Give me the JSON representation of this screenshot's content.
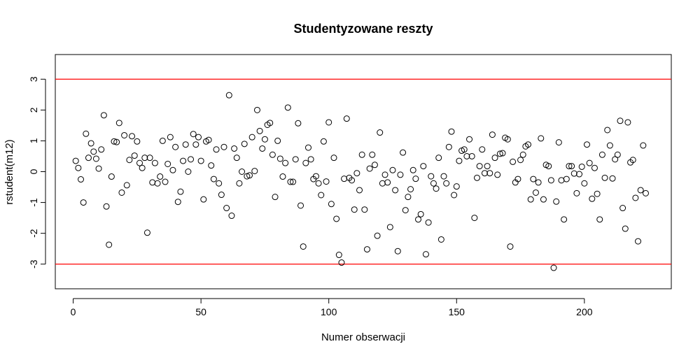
{
  "chart_data": {
    "type": "scatter",
    "title": "Studentyzowane reszty",
    "xlabel": "Numer obserwacji",
    "ylabel": "rstudent(m12)",
    "xlim": [
      -7,
      234
    ],
    "ylim": [
      -3.8,
      3.8
    ],
    "x_ticks": [
      0,
      50,
      100,
      150,
      200
    ],
    "y_ticks": [
      -3,
      -2,
      -1,
      0,
      1,
      2,
      3
    ],
    "grid": false,
    "reference_lines": [
      {
        "y": 3,
        "color": "#ff0000"
      },
      {
        "y": -3,
        "color": "#ff0000"
      }
    ],
    "point_color": "#000000",
    "x": [
      1,
      2,
      3,
      4,
      5,
      6,
      7,
      8,
      9,
      10,
      11,
      12,
      13,
      14,
      15,
      16,
      17,
      18,
      19,
      20,
      21,
      22,
      23,
      24,
      25,
      26,
      27,
      28,
      29,
      30,
      31,
      32,
      33,
      34,
      35,
      36,
      37,
      38,
      39,
      40,
      41,
      42,
      43,
      44,
      45,
      46,
      47,
      48,
      49,
      50,
      51,
      52,
      53,
      54,
      55,
      56,
      57,
      58,
      59,
      60,
      61,
      62,
      63,
      64,
      65,
      66,
      67,
      68,
      69,
      70,
      71,
      72,
      73,
      74,
      75,
      76,
      77,
      78,
      79,
      80,
      81,
      82,
      83,
      84,
      85,
      86,
      87,
      88,
      89,
      90,
      91,
      92,
      93,
      94,
      95,
      96,
      97,
      98,
      99,
      100,
      101,
      102,
      103,
      104,
      105,
      106,
      107,
      108,
      109,
      110,
      111,
      112,
      113,
      114,
      115,
      116,
      117,
      118,
      119,
      120,
      121,
      122,
      123,
      124,
      125,
      126,
      127,
      128,
      129,
      130,
      131,
      132,
      133,
      134,
      135,
      136,
      137,
      138,
      139,
      140,
      141,
      142,
      143,
      144,
      145,
      146,
      147,
      148,
      149,
      150,
      151,
      152,
      153,
      154,
      155,
      156,
      157,
      158,
      159,
      160,
      161,
      162,
      163,
      164,
      165,
      166,
      167,
      168,
      169,
      170,
      171,
      172,
      173,
      174,
      175,
      176,
      177,
      178,
      179,
      180,
      181,
      182,
      183,
      184,
      185,
      186,
      187,
      188,
      189,
      190,
      191,
      192,
      193,
      194,
      195,
      196,
      197,
      198,
      199,
      200,
      201,
      202,
      203,
      204,
      205,
      206,
      207,
      208,
      209,
      210,
      211,
      212,
      213,
      214,
      215,
      216,
      217,
      218,
      219,
      220,
      221,
      222,
      223,
      224
    ],
    "y": [
      0.35,
      0.12,
      -0.25,
      -1.0,
      1.23,
      0.45,
      0.92,
      0.65,
      0.42,
      0.1,
      0.72,
      1.83,
      -1.13,
      -2.37,
      -0.16,
      0.98,
      0.96,
      1.58,
      -0.68,
      1.18,
      -0.44,
      0.38,
      1.15,
      0.52,
      0.98,
      0.28,
      0.12,
      0.45,
      -1.98,
      0.45,
      -0.35,
      0.28,
      -0.38,
      -0.16,
      1.0,
      -0.33,
      0.25,
      1.12,
      0.05,
      0.8,
      -0.98,
      -0.65,
      0.35,
      0.88,
      0.0,
      0.4,
      1.22,
      0.88,
      1.12,
      0.35,
      -0.9,
      0.98,
      1.03,
      0.2,
      -0.24,
      0.72,
      -0.38,
      -0.75,
      0.8,
      -1.18,
      2.48,
      -1.43,
      0.75,
      0.45,
      -0.38,
      0.0,
      0.9,
      -0.15,
      -0.12,
      1.12,
      0.02,
      2.0,
      1.32,
      0.75,
      1.05,
      1.52,
      1.58,
      0.55,
      -0.82,
      1.0,
      0.42,
      -0.16,
      0.28,
      2.08,
      -0.33,
      -0.33,
      0.4,
      1.57,
      -1.1,
      -2.43,
      0.28,
      0.78,
      0.4,
      -0.24,
      -0.15,
      -0.38,
      -0.76,
      0.98,
      -0.32,
      1.6,
      -1.05,
      0.45,
      -1.53,
      -2.7,
      -2.95,
      -0.23,
      1.72,
      -0.2,
      -0.28,
      -1.23,
      -0.05,
      -0.6,
      0.55,
      -1.23,
      -2.52,
      0.1,
      0.55,
      0.22,
      -2.08,
      1.27,
      -0.38,
      -0.1,
      -0.35,
      -1.8,
      0.05,
      -0.6,
      -2.58,
      -0.1,
      0.62,
      -1.25,
      -0.82,
      -0.57,
      0.05,
      -0.23,
      -1.55,
      -1.38,
      0.18,
      -2.68,
      -1.65,
      -0.15,
      -0.38,
      -0.55,
      0.45,
      -2.2,
      -0.15,
      -0.38,
      0.8,
      1.3,
      -0.76,
      -0.48,
      0.35,
      0.68,
      0.72,
      0.5,
      1.05,
      0.5,
      -1.5,
      -0.2,
      0.18,
      0.72,
      -0.05,
      0.18,
      -0.05,
      1.2,
      0.45,
      -0.1,
      0.58,
      0.6,
      1.1,
      1.05,
      -2.43,
      0.32,
      -0.35,
      -0.24,
      0.38,
      0.55,
      0.82,
      0.88,
      -0.9,
      -0.24,
      -0.68,
      -0.35,
      1.08,
      -0.9,
      0.22,
      0.18,
      -0.28,
      -3.12,
      -0.97,
      0.95,
      -0.28,
      -1.55,
      -0.24,
      0.18,
      0.18,
      -0.06,
      -0.7,
      -0.08,
      0.16,
      -0.38,
      0.88,
      0.28,
      -0.88,
      0.12,
      -0.72,
      -1.55,
      0.55,
      -0.2,
      1.35,
      0.85,
      -0.22,
      0.4,
      0.55,
      1.65,
      -1.18,
      -1.85,
      1.6,
      0.3,
      0.38,
      -0.85,
      -2.26,
      -0.6,
      0.85,
      -0.7
    ]
  }
}
